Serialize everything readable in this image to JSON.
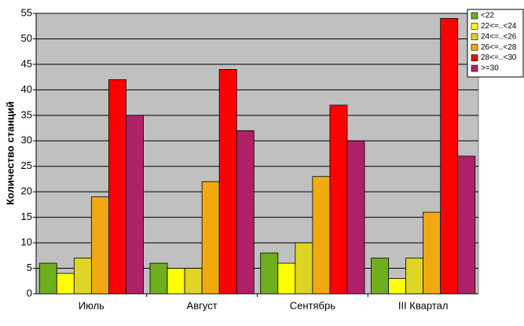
{
  "chart_data": {
    "type": "bar",
    "y_label": "Количество станций",
    "categories": [
      "Июль",
      "Август",
      "Сентябрь",
      "III Квартал"
    ],
    "series": [
      {
        "name": "<22",
        "color": "#6fae1c",
        "values": [
          6,
          6,
          8,
          7
        ]
      },
      {
        "name": "22<=..<24",
        "color": "#ffff00",
        "values": [
          4,
          5,
          6,
          3
        ]
      },
      {
        "name": "24<=..<26",
        "color": "#ded424",
        "values": [
          7,
          5,
          10,
          7
        ]
      },
      {
        "name": "26<=..<28",
        "color": "#f0aa10",
        "values": [
          19,
          22,
          23,
          16
        ]
      },
      {
        "name": "28<=..<30",
        "color": "#ff0000",
        "values": [
          42,
          44,
          37,
          54
        ]
      },
      {
        "name": ">=30",
        "color": "#b02068",
        "values": [
          35,
          32,
          30,
          27
        ]
      }
    ],
    "ylim": [
      0,
      55
    ],
    "yticks": [
      0,
      5,
      10,
      15,
      20,
      25,
      30,
      35,
      40,
      45,
      50,
      55
    ],
    "grid": true,
    "legend": "top-right"
  }
}
